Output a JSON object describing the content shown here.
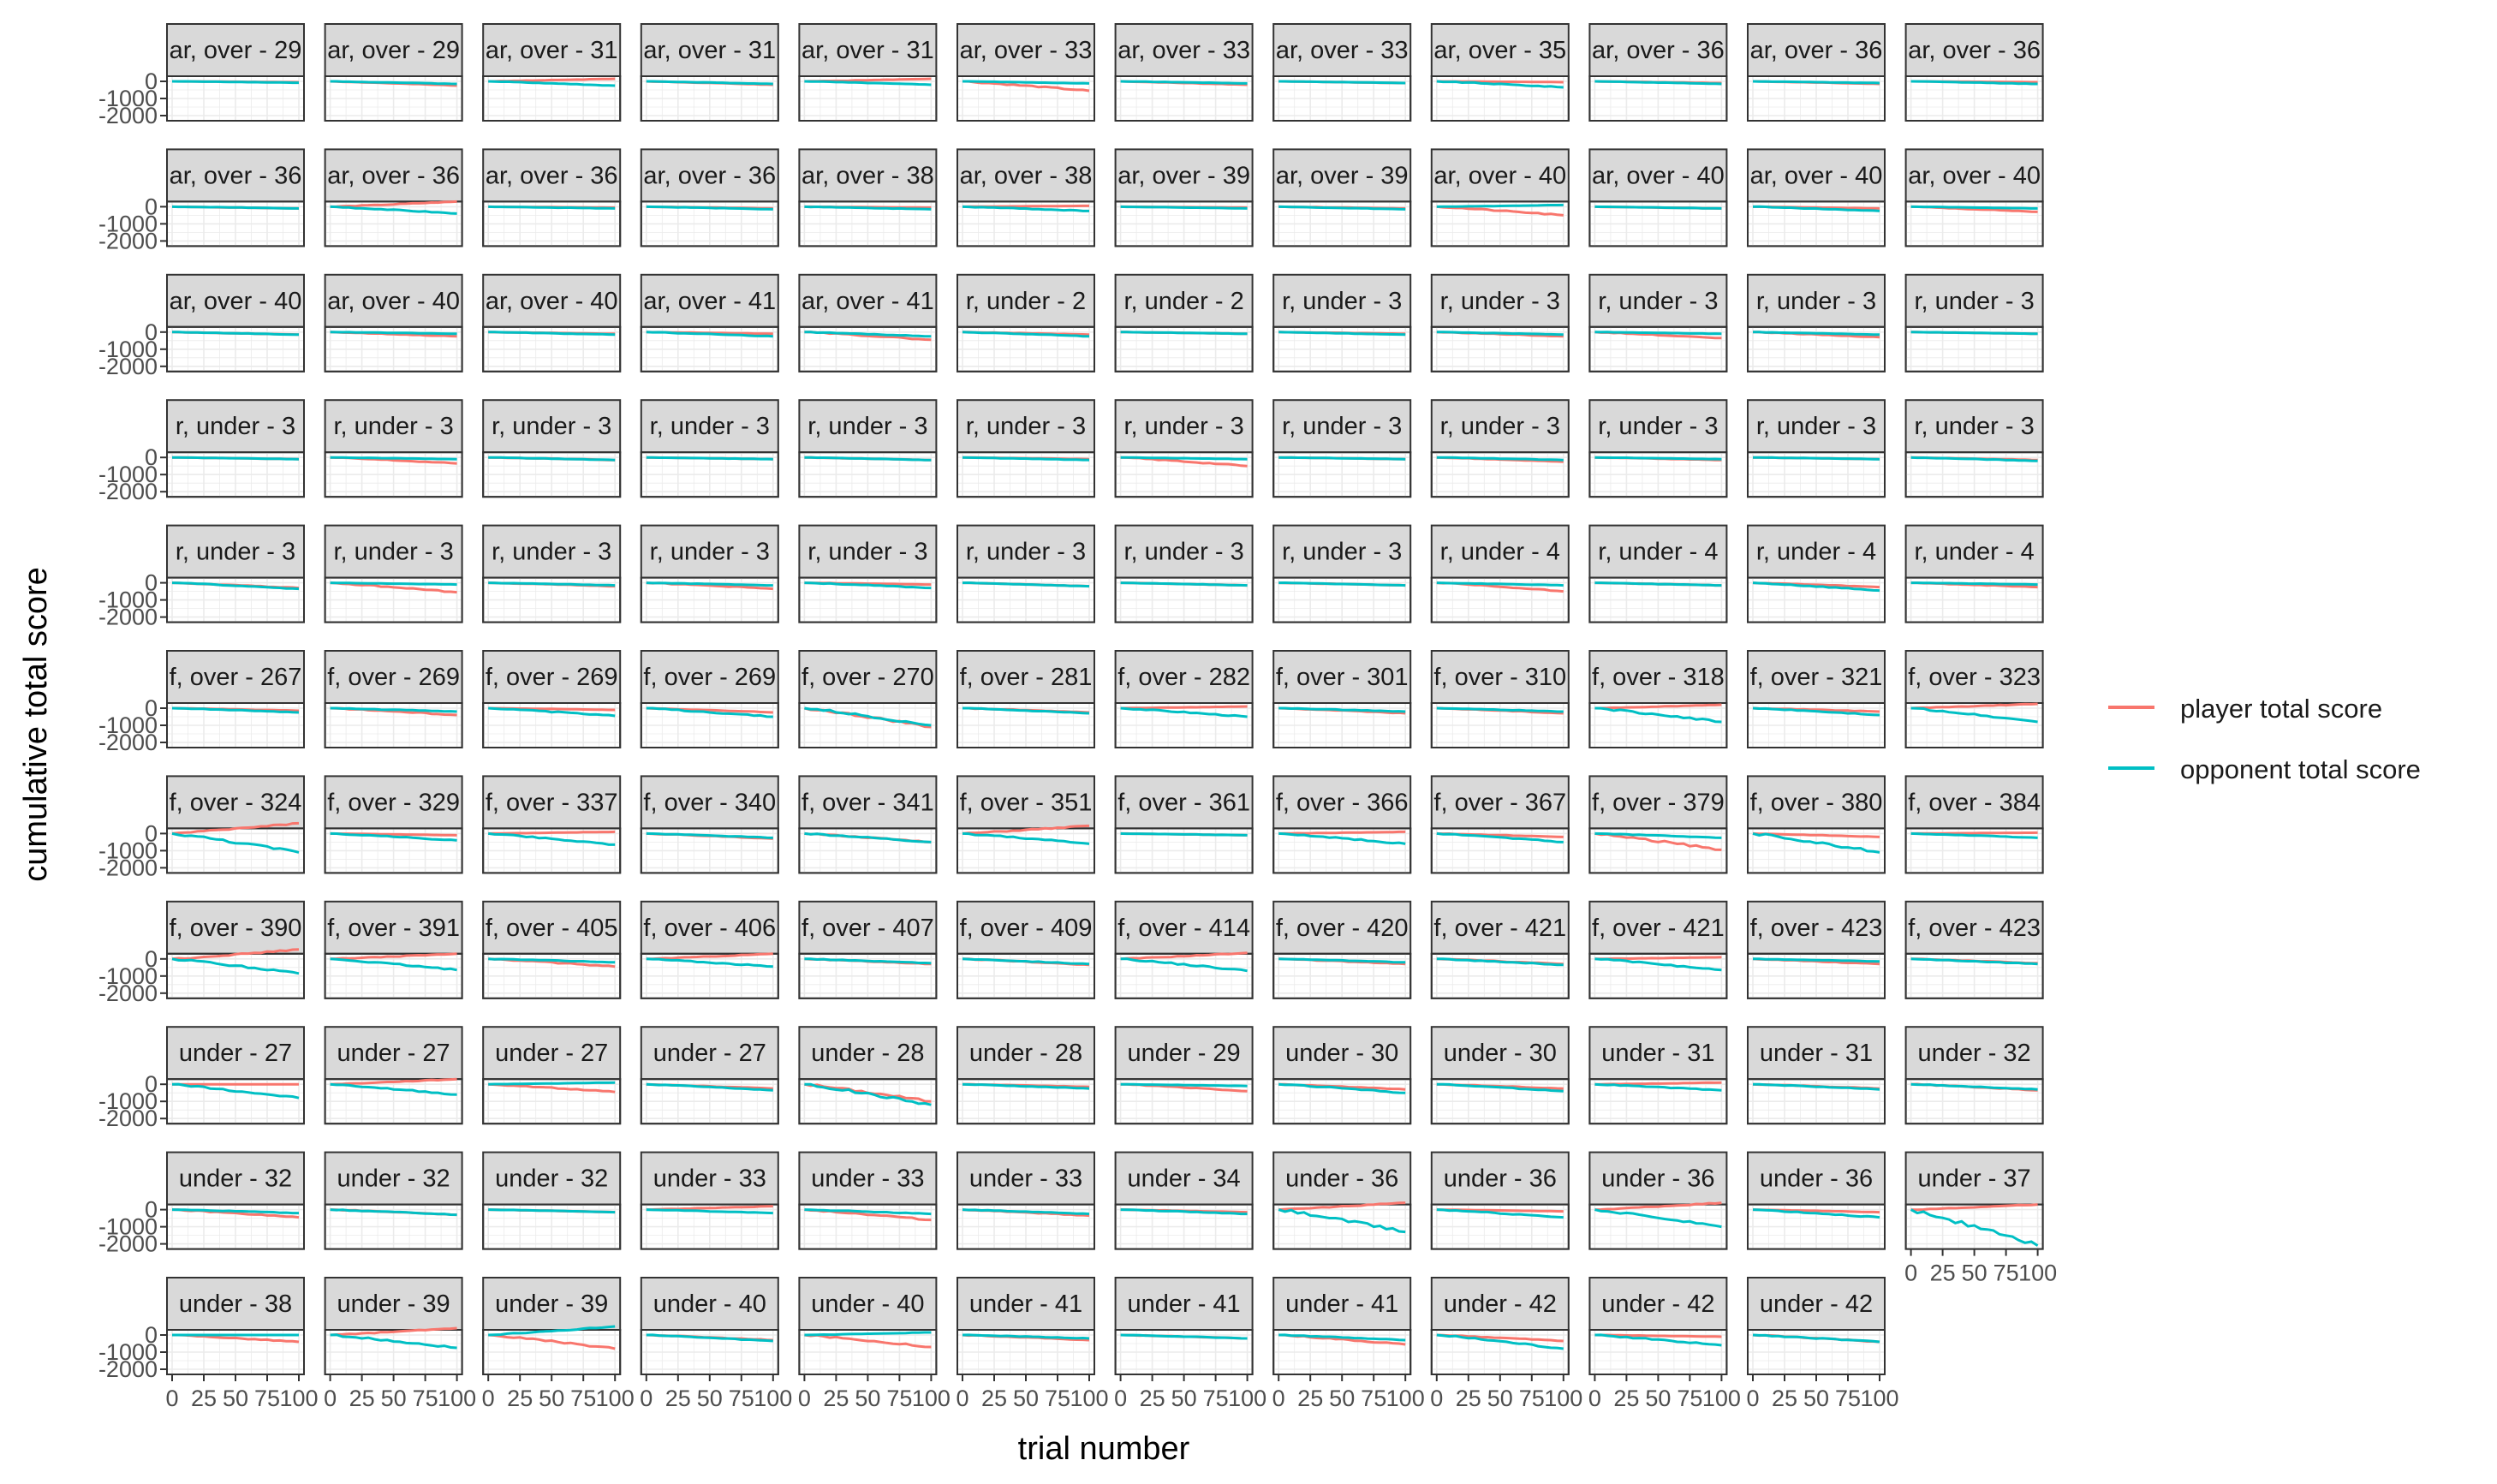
{
  "chart_data": {
    "type": "line",
    "xlabel": "trial number",
    "ylabel": "cumulative total score",
    "x_ticks": [
      "0",
      "25",
      "50",
      "75",
      "100"
    ],
    "y_ticks": [
      "-2000",
      "-1000",
      "0"
    ],
    "xlim": [
      0,
      100
    ],
    "ylim": [
      -2300,
      300
    ],
    "grid": true,
    "legend_position": "right",
    "series_names": [
      "player total score",
      "opponent total score"
    ],
    "colors": {
      "player": "#F8766D",
      "opponent": "#00BFC4"
    },
    "panels": [
      {
        "label": "ar, over - 29",
        "player_end": -50,
        "opp_end": -80
      },
      {
        "label": "ar, over - 29",
        "player_end": -250,
        "opp_end": -150
      },
      {
        "label": "ar, over - 31",
        "player_end": 150,
        "opp_end": -250
      },
      {
        "label": "ar, over - 31",
        "player_end": -200,
        "opp_end": -150
      },
      {
        "label": "ar, over - 31",
        "player_end": 150,
        "opp_end": -200
      },
      {
        "label": "ar, over - 33",
        "player_end": -550,
        "opp_end": -120
      },
      {
        "label": "ar, over - 33",
        "player_end": -200,
        "opp_end": -120
      },
      {
        "label": "ar, over - 33",
        "player_end": -100,
        "opp_end": -100
      },
      {
        "label": "ar, over - 35",
        "player_end": -50,
        "opp_end": -350
      },
      {
        "label": "ar, over - 36",
        "player_end": -100,
        "opp_end": -150
      },
      {
        "label": "ar, over - 36",
        "player_end": -150,
        "opp_end": -100
      },
      {
        "label": "ar, over - 36",
        "player_end": -50,
        "opp_end": -150
      },
      {
        "label": "ar, over - 36",
        "player_end": -100,
        "opp_end": -100
      },
      {
        "label": "ar, over - 36",
        "player_end": 300,
        "opp_end": -400
      },
      {
        "label": "ar, over - 36",
        "player_end": -50,
        "opp_end": -100
      },
      {
        "label": "ar, over - 36",
        "player_end": -100,
        "opp_end": -150
      },
      {
        "label": "ar, over - 38",
        "player_end": -50,
        "opp_end": -150
      },
      {
        "label": "ar, over - 38",
        "player_end": 50,
        "opp_end": -250
      },
      {
        "label": "ar, over - 39",
        "player_end": -50,
        "opp_end": -100
      },
      {
        "label": "ar, over - 39",
        "player_end": -100,
        "opp_end": -150
      },
      {
        "label": "ar, over - 40",
        "player_end": -500,
        "opp_end": 100
      },
      {
        "label": "ar, over - 40",
        "player_end": -100,
        "opp_end": -100
      },
      {
        "label": "ar, over - 40",
        "player_end": -100,
        "opp_end": -250
      },
      {
        "label": "ar, over - 40",
        "player_end": -300,
        "opp_end": -100
      },
      {
        "label": "ar, over - 40",
        "player_end": -150,
        "opp_end": -150
      },
      {
        "label": "ar, over - 40",
        "player_end": -250,
        "opp_end": -100
      },
      {
        "label": "ar, over - 40",
        "player_end": -100,
        "opp_end": -150
      },
      {
        "label": "ar, over - 41",
        "player_end": -100,
        "opp_end": -250
      },
      {
        "label": "ar, over - 41",
        "player_end": -450,
        "opp_end": -250
      },
      {
        "label": "r, under - 2",
        "player_end": -150,
        "opp_end": -250
      },
      {
        "label": "r, under - 2",
        "player_end": -100,
        "opp_end": -100
      },
      {
        "label": "r, under - 3",
        "player_end": -100,
        "opp_end": -150
      },
      {
        "label": "r, under - 3",
        "player_end": -250,
        "opp_end": -150
      },
      {
        "label": "r, under - 3",
        "player_end": -350,
        "opp_end": -100
      },
      {
        "label": "r, under - 3",
        "player_end": -300,
        "opp_end": -150
      },
      {
        "label": "r, under - 3",
        "player_end": -100,
        "opp_end": -100
      },
      {
        "label": "r, under - 3",
        "player_end": -100,
        "opp_end": -100
      },
      {
        "label": "r, under - 3",
        "player_end": -350,
        "opp_end": -100
      },
      {
        "label": "r, under - 3",
        "player_end": -150,
        "opp_end": -150
      },
      {
        "label": "r, under - 3",
        "player_end": -100,
        "opp_end": -100
      },
      {
        "label": "r, under - 3",
        "player_end": -150,
        "opp_end": -150
      },
      {
        "label": "r, under - 3",
        "player_end": -100,
        "opp_end": -150
      },
      {
        "label": "r, under - 3",
        "player_end": -500,
        "opp_end": -100
      },
      {
        "label": "r, under - 3",
        "player_end": -100,
        "opp_end": -100
      },
      {
        "label": "r, under - 3",
        "player_end": -250,
        "opp_end": -150
      },
      {
        "label": "r, under - 3",
        "player_end": -150,
        "opp_end": -100
      },
      {
        "label": "r, under - 3",
        "player_end": -100,
        "opp_end": -100
      },
      {
        "label": "r, under - 3",
        "player_end": -150,
        "opp_end": -200
      },
      {
        "label": "r, under - 3",
        "player_end": -300,
        "opp_end": -350
      },
      {
        "label": "r, under - 3",
        "player_end": -550,
        "opp_end": -100
      },
      {
        "label": "r, under - 3",
        "player_end": -200,
        "opp_end": -150
      },
      {
        "label": "r, under - 3",
        "player_end": -350,
        "opp_end": -150
      },
      {
        "label": "r, under - 3",
        "player_end": -100,
        "opp_end": -300
      },
      {
        "label": "r, under - 3",
        "player_end": -200,
        "opp_end": -200
      },
      {
        "label": "r, under - 3",
        "player_end": -150,
        "opp_end": -150
      },
      {
        "label": "r, under - 3",
        "player_end": -150,
        "opp_end": -150
      },
      {
        "label": "r, under - 4",
        "player_end": -500,
        "opp_end": -150
      },
      {
        "label": "r, under - 4",
        "player_end": -150,
        "opp_end": -150
      },
      {
        "label": "r, under - 4",
        "player_end": -250,
        "opp_end": -450
      },
      {
        "label": "r, under - 4",
        "player_end": -250,
        "opp_end": -100
      },
      {
        "label": "f, over - 267",
        "player_end": -150,
        "opp_end": -250
      },
      {
        "label": "f, over - 269",
        "player_end": -400,
        "opp_end": -200
      },
      {
        "label": "f, over - 269",
        "player_end": -100,
        "opp_end": -450
      },
      {
        "label": "f, over - 269",
        "player_end": -250,
        "opp_end": -500
      },
      {
        "label": "f, over - 270",
        "player_end": -1100,
        "opp_end": -1000
      },
      {
        "label": "f, over - 281",
        "player_end": -250,
        "opp_end": -300
      },
      {
        "label": "f, over - 282",
        "player_end": 100,
        "opp_end": -500
      },
      {
        "label": "f, over - 301",
        "player_end": -300,
        "opp_end": -200
      },
      {
        "label": "f, over - 310",
        "player_end": -300,
        "opp_end": -200
      },
      {
        "label": "f, over - 318",
        "player_end": 200,
        "opp_end": -800
      },
      {
        "label": "f, over - 321",
        "player_end": -200,
        "opp_end": -400
      },
      {
        "label": "f, over - 323",
        "player_end": 250,
        "opp_end": -800
      },
      {
        "label": "f, over - 324",
        "player_end": 600,
        "opp_end": -1100
      },
      {
        "label": "f, over - 329",
        "player_end": -100,
        "opp_end": -400
      },
      {
        "label": "f, over - 337",
        "player_end": 100,
        "opp_end": -650
      },
      {
        "label": "f, over - 340",
        "player_end": -300,
        "opp_end": -250
      },
      {
        "label": "f, over - 341",
        "player_end": -500,
        "opp_end": -500
      },
      {
        "label": "f, over - 351",
        "player_end": 450,
        "opp_end": -600
      },
      {
        "label": "f, over - 361",
        "player_end": -100,
        "opp_end": -100
      },
      {
        "label": "f, over - 366",
        "player_end": 100,
        "opp_end": -600
      },
      {
        "label": "f, over - 367",
        "player_end": -200,
        "opp_end": -500
      },
      {
        "label": "f, over - 379",
        "player_end": -950,
        "opp_end": -250
      },
      {
        "label": "f, over - 380",
        "player_end": -200,
        "opp_end": -1100
      },
      {
        "label": "f, over - 384",
        "player_end": 50,
        "opp_end": -250
      },
      {
        "label": "f, over - 390",
        "player_end": 550,
        "opp_end": -850
      },
      {
        "label": "f, over - 391",
        "player_end": 300,
        "opp_end": -650
      },
      {
        "label": "f, over - 405",
        "player_end": -450,
        "opp_end": -200
      },
      {
        "label": "f, over - 406",
        "player_end": 300,
        "opp_end": -450
      },
      {
        "label": "f, over - 407",
        "player_end": -300,
        "opp_end": -250
      },
      {
        "label": "f, over - 409",
        "player_end": -350,
        "opp_end": -300
      },
      {
        "label": "f, over - 414",
        "player_end": 350,
        "opp_end": -700
      },
      {
        "label": "f, over - 420",
        "player_end": -300,
        "opp_end": -200
      },
      {
        "label": "f, over - 421",
        "player_end": -300,
        "opp_end": -350
      },
      {
        "label": "f, over - 421",
        "player_end": 100,
        "opp_end": -650
      },
      {
        "label": "f, over - 423",
        "player_end": -300,
        "opp_end": -150
      },
      {
        "label": "f, over - 423",
        "player_end": -250,
        "opp_end": -300
      },
      {
        "label": "under - 27",
        "player_end": 0,
        "opp_end": -800
      },
      {
        "label": "under - 27",
        "player_end": 300,
        "opp_end": -600
      },
      {
        "label": "under - 27",
        "player_end": -450,
        "opp_end": 100
      },
      {
        "label": "under - 27",
        "player_end": -250,
        "opp_end": -350
      },
      {
        "label": "under - 28",
        "player_end": -1000,
        "opp_end": -1200
      },
      {
        "label": "under - 28",
        "player_end": -150,
        "opp_end": -250
      },
      {
        "label": "under - 29",
        "player_end": -400,
        "opp_end": -100
      },
      {
        "label": "under - 30",
        "player_end": -300,
        "opp_end": -500
      },
      {
        "label": "under - 30",
        "player_end": -250,
        "opp_end": -400
      },
      {
        "label": "under - 31",
        "player_end": 100,
        "opp_end": -350
      },
      {
        "label": "under - 31",
        "player_end": -250,
        "opp_end": -300
      },
      {
        "label": "under - 32",
        "player_end": -350,
        "opp_end": -300
      },
      {
        "label": "under - 32",
        "player_end": -450,
        "opp_end": -200
      },
      {
        "label": "under - 32",
        "player_end": -300,
        "opp_end": -300
      },
      {
        "label": "under - 32",
        "player_end": -150,
        "opp_end": -150
      },
      {
        "label": "under - 33",
        "player_end": 200,
        "opp_end": -200
      },
      {
        "label": "under - 33",
        "player_end": -600,
        "opp_end": -250
      },
      {
        "label": "under - 33",
        "player_end": -350,
        "opp_end": -250
      },
      {
        "label": "under - 34",
        "player_end": -150,
        "opp_end": -250
      },
      {
        "label": "under - 36",
        "player_end": 400,
        "opp_end": -1300
      },
      {
        "label": "under - 36",
        "player_end": -100,
        "opp_end": -450
      },
      {
        "label": "under - 36",
        "player_end": 400,
        "opp_end": -1000
      },
      {
        "label": "under - 36",
        "player_end": -150,
        "opp_end": -450
      },
      {
        "label": "under - 37",
        "player_end": 300,
        "opp_end": -2100
      },
      {
        "label": "under - 38",
        "player_end": -400,
        "opp_end": 0
      },
      {
        "label": "under - 39",
        "player_end": 400,
        "opp_end": -750
      },
      {
        "label": "under - 39",
        "player_end": -800,
        "opp_end": 500
      },
      {
        "label": "under - 40",
        "player_end": -300,
        "opp_end": -350
      },
      {
        "label": "under - 40",
        "player_end": -700,
        "opp_end": 150
      },
      {
        "label": "under - 41",
        "player_end": -300,
        "opp_end": -200
      },
      {
        "label": "under - 41",
        "player_end": -200,
        "opp_end": -200
      },
      {
        "label": "under - 41",
        "player_end": -550,
        "opp_end": -300
      },
      {
        "label": "under - 42",
        "player_end": -350,
        "opp_end": -800
      },
      {
        "label": "under - 42",
        "player_end": -100,
        "opp_end": -600
      },
      {
        "label": "under - 42",
        "player_end": -400,
        "opp_end": -400
      }
    ]
  }
}
